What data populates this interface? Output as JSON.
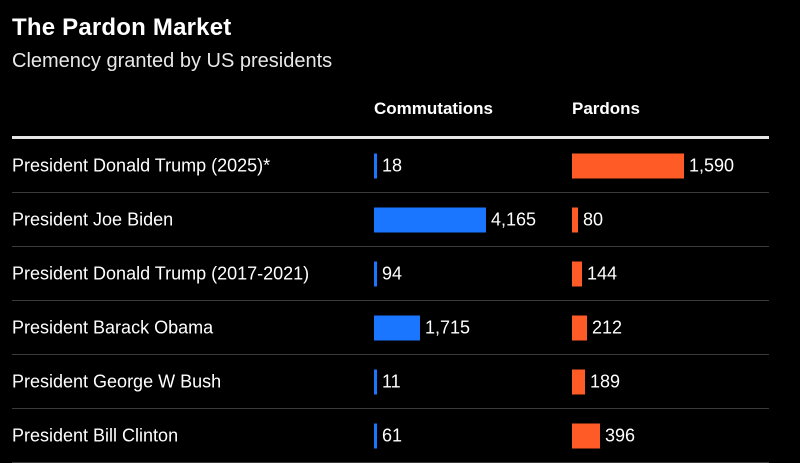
{
  "chart_data": {
    "type": "bar",
    "orientation": "horizontal",
    "title": "The Pardon Market",
    "subtitle": "Clemency granted by US presidents",
    "categories": [
      "President Donald Trump (2025)*",
      "President Joe Biden",
      "President Donald Trump (2017-2021)",
      "President Barack Obama",
      "President George W Bush",
      "President Bill Clinton"
    ],
    "series": [
      {
        "name": "Commutations",
        "values": [
          18,
          4165,
          94,
          1715,
          11,
          61
        ],
        "labels": [
          "18",
          "4,165",
          "94",
          "1,715",
          "11",
          "61"
        ],
        "color": "#1a75ff"
      },
      {
        "name": "Pardons",
        "values": [
          1590,
          80,
          144,
          212,
          189,
          396
        ],
        "labels": [
          "1,590",
          "80",
          "144",
          "212",
          "189",
          "396"
        ],
        "color": "#ff5b26"
      }
    ],
    "colors": {
      "background": "#000000",
      "text": "#ffffff",
      "rule": "#e6e6e6",
      "divider": "#3a3a3a"
    }
  }
}
